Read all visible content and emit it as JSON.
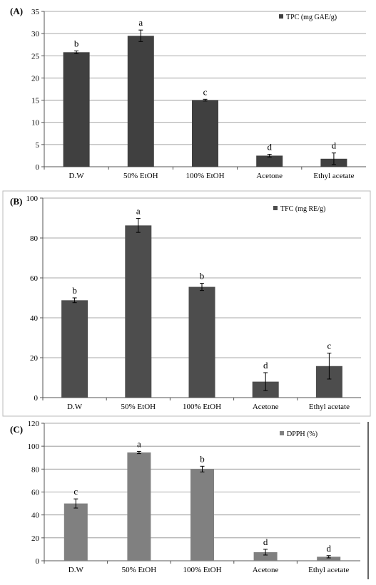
{
  "chart_data": [
    {
      "type": "bar",
      "panel_label": "(A)",
      "categories": [
        "D.W",
        "50% EtOH",
        "100% EtOH",
        "Acetone",
        "Ethyl acetate"
      ],
      "series": [
        {
          "name": "TPC  (mg GAE/g)",
          "values": [
            25.8,
            29.5,
            15.0,
            2.5,
            1.8
          ],
          "errors": [
            0.3,
            1.3,
            0.2,
            0.3,
            1.3
          ],
          "letters": [
            "b",
            "a",
            "c",
            "d",
            "d"
          ]
        }
      ],
      "ylim": [
        0,
        35
      ],
      "yticks": [
        0,
        5,
        10,
        15,
        20,
        25,
        30,
        35
      ],
      "grid": true,
      "legend_position": "top-right",
      "color": "#404040"
    },
    {
      "type": "bar",
      "panel_label": "(B)",
      "categories": [
        "D.W",
        "50% EtOH",
        "100% EtOH",
        "Acetone",
        "Ethyl acetate"
      ],
      "series": [
        {
          "name": "TFC  (mg RE/g)",
          "values": [
            48.8,
            86.3,
            55.5,
            8.0,
            15.8
          ],
          "errors": [
            1.2,
            3.5,
            1.8,
            4.5,
            6.5
          ],
          "letters": [
            "b",
            "a",
            "b",
            "d",
            "c"
          ]
        }
      ],
      "ylim": [
        0,
        100
      ],
      "yticks": [
        0,
        20,
        40,
        60,
        80,
        100
      ],
      "grid": true,
      "legend_position": "top-right",
      "color": "#4d4d4d"
    },
    {
      "type": "bar",
      "panel_label": "(C)",
      "categories": [
        "D.W",
        "50% EtOH",
        "100% EtOH",
        "Acetone",
        "Ethyl acetate"
      ],
      "series": [
        {
          "name": "DPPH  (%)",
          "values": [
            50.0,
            94.5,
            80.0,
            7.5,
            3.5
          ],
          "errors": [
            4.0,
            1.0,
            2.5,
            2.5,
            1.0
          ],
          "letters": [
            "c",
            "a",
            "b",
            "d",
            "d"
          ]
        }
      ],
      "ylim": [
        0,
        120
      ],
      "yticks": [
        0,
        20,
        40,
        60,
        80,
        100,
        120
      ],
      "grid": true,
      "legend_position": "top-right",
      "color": "#808080"
    }
  ]
}
